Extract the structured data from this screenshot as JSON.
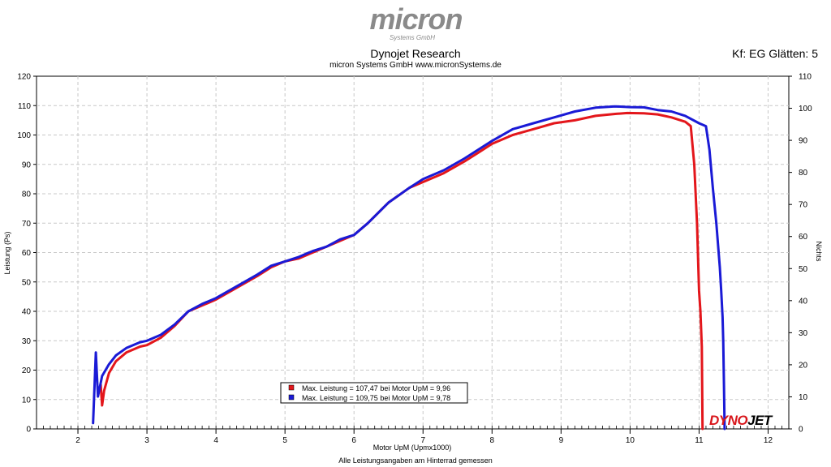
{
  "header": {
    "logo_text": "micron",
    "logo_subtext": "Systems GmbH",
    "title": "Dynojet Research",
    "subtitle": "micron Systems GmbH   www.micronSystems.de",
    "smoothing": "Kf: EG Glätten: 5"
  },
  "footer": {
    "note": "Alle Leistungsangaben am Hinterrad gemessen",
    "brand_left": "DYNO",
    "brand_right": "JET"
  },
  "colors": {
    "run1": "#e3161b",
    "run2": "#1a1ad6",
    "brand_left": "#d8161b",
    "grid": "#c8c8c8"
  },
  "chart_data": {
    "type": "line",
    "title": "Dynojet Research",
    "xlabel": "Motor UpM (Upmx1000)",
    "ylabel": "Leistung (Ps)",
    "y2label": "Nichts",
    "xlim": [
      1.4,
      12.3
    ],
    "ylim": [
      0,
      120
    ],
    "y2lim": [
      0,
      110
    ],
    "x_ticks": [
      2,
      3,
      4,
      5,
      6,
      7,
      8,
      9,
      10,
      11,
      12
    ],
    "y_ticks": [
      0,
      10,
      20,
      30,
      40,
      50,
      60,
      70,
      80,
      90,
      100,
      110,
      120
    ],
    "y2_ticks": [
      0,
      10,
      20,
      30,
      40,
      50,
      60,
      70,
      80,
      90,
      100,
      110
    ],
    "grid": true,
    "legend_position": "bottom-center",
    "series": [
      {
        "name": "Max. Leistung = 107,47 bei Motor UpM = 9,96",
        "color": "#e3161b",
        "x": [
          2.33,
          2.35,
          2.38,
          2.45,
          2.55,
          2.7,
          2.9,
          3.0,
          3.2,
          3.4,
          3.6,
          3.8,
          4.0,
          4.3,
          4.6,
          4.8,
          5.0,
          5.2,
          5.4,
          5.6,
          5.8,
          6.0,
          6.2,
          6.5,
          6.8,
          7.0,
          7.3,
          7.6,
          7.8,
          8.0,
          8.3,
          8.6,
          8.9,
          9.2,
          9.5,
          9.8,
          9.96,
          10.2,
          10.4,
          10.6,
          10.8,
          10.88,
          10.93,
          10.97,
          11.0,
          11.02,
          11.04,
          11.05
        ],
        "y": [
          15,
          8,
          13,
          19,
          23,
          26,
          28,
          28.5,
          31,
          35,
          40,
          42,
          44,
          48,
          52,
          55,
          57,
          58,
          60,
          62,
          64,
          66,
          70,
          77,
          82,
          84,
          87,
          91,
          94,
          97,
          100,
          102,
          104,
          105,
          106.5,
          107.2,
          107.47,
          107.4,
          107,
          106,
          104.5,
          103,
          90,
          70,
          47,
          40,
          28,
          0
        ]
      },
      {
        "name": "Max. Leistung = 109,75 bei Motor UpM = 9,78",
        "color": "#1a1ad6",
        "x": [
          2.22,
          2.26,
          2.29,
          2.35,
          2.45,
          2.55,
          2.7,
          2.9,
          3.0,
          3.2,
          3.4,
          3.6,
          3.8,
          4.0,
          4.3,
          4.6,
          4.8,
          5.0,
          5.2,
          5.4,
          5.6,
          5.8,
          6.0,
          6.2,
          6.5,
          6.8,
          7.0,
          7.3,
          7.6,
          7.8,
          8.0,
          8.3,
          8.6,
          8.9,
          9.2,
          9.5,
          9.78,
          10.0,
          10.2,
          10.4,
          10.6,
          10.8,
          11.0,
          11.1,
          11.15,
          11.2,
          11.25,
          11.3,
          11.32,
          11.34,
          11.35,
          11.36,
          11.37
        ],
        "y": [
          2,
          26,
          11,
          18,
          22,
          25,
          27.5,
          29.5,
          30,
          32,
          35.5,
          40,
          42.5,
          44.5,
          48.5,
          52.5,
          55.5,
          57,
          58.5,
          60.5,
          62,
          64.5,
          66,
          70,
          77,
          82,
          85,
          88,
          92,
          95,
          98,
          102,
          104,
          106,
          108,
          109.3,
          109.75,
          109.5,
          109.4,
          108.5,
          108,
          106.5,
          104,
          103,
          95,
          82,
          70,
          55,
          47,
          38,
          30,
          15,
          0
        ]
      }
    ]
  }
}
